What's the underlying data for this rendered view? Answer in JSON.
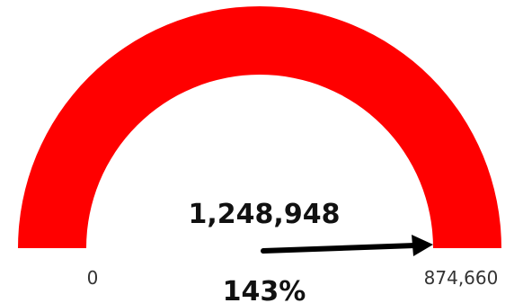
{
  "chart_data": {
    "type": "gauge",
    "min": 0,
    "max": 874660,
    "value": 1248948,
    "value_label": "1,248,948",
    "percent_label": "143%",
    "min_label": "0",
    "max_label": "874,660",
    "fill_color": "#ff0000",
    "needle_color": "#000000",
    "title": ""
  }
}
